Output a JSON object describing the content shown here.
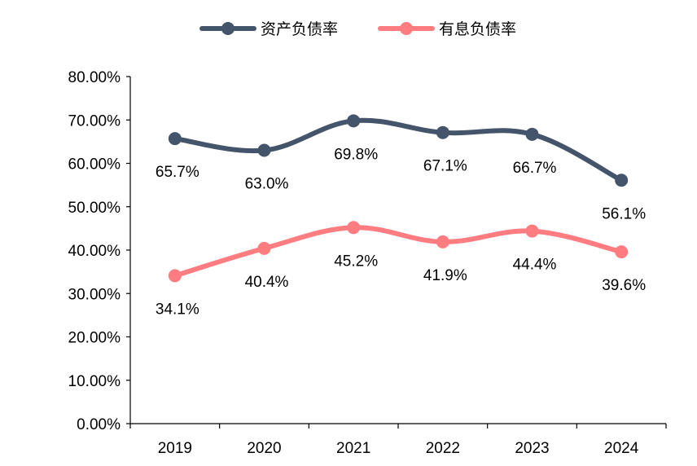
{
  "chart_data": {
    "type": "line",
    "categories": [
      "2019",
      "2020",
      "2021",
      "2022",
      "2023",
      "2024"
    ],
    "series": [
      {
        "name": "资产负债率",
        "values": [
          65.7,
          63.0,
          69.8,
          67.1,
          66.7,
          56.1
        ],
        "labels": [
          "65.7%",
          "63.0%",
          "69.8%",
          "67.1%",
          "66.7%",
          "56.1%"
        ],
        "color": "#44546A"
      },
      {
        "name": "有息负债率",
        "values": [
          34.1,
          40.4,
          45.2,
          41.9,
          44.4,
          39.6
        ],
        "labels": [
          "34.1%",
          "40.4%",
          "45.2%",
          "41.9%",
          "44.4%",
          "39.6%"
        ],
        "color": "#FF7C80"
      }
    ],
    "y_ticks": [
      "0.00%",
      "10.00%",
      "20.00%",
      "30.00%",
      "40.00%",
      "50.00%",
      "60.00%",
      "70.00%",
      "80.00%"
    ],
    "ylim": [
      0,
      80
    ],
    "smooth": true,
    "grid": false,
    "legend_position": "top"
  }
}
